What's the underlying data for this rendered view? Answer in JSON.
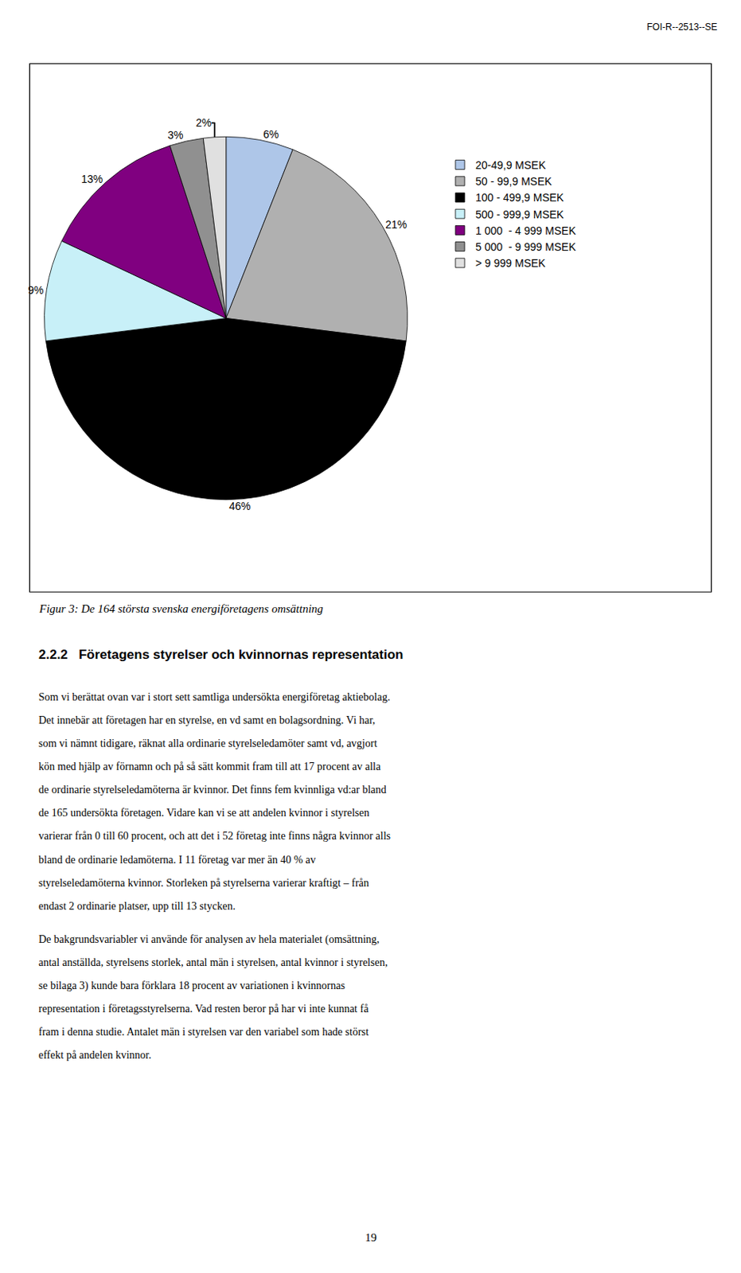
{
  "chart_data": {
    "type": "pie",
    "categories": [
      "20-49,9 MSEK",
      "50 - 99,9 MSEK",
      "100 - 499,9 MSEK",
      "500 - 999,9 MSEK",
      "1 000  - 4 999 MSEK",
      "5 000  - 9 999 MSEK",
      "> 9 999 MSEK"
    ],
    "values": [
      6,
      21,
      46,
      9,
      13,
      3,
      2
    ],
    "value_labels": [
      "6%",
      "21%",
      "46%",
      "9%",
      "13%",
      "3%",
      "2%"
    ],
    "colors": [
      "#aec6e8",
      "#b0b0b0",
      "#000000",
      "#c8f0f8",
      "#800080",
      "#909090",
      "#e0e0e0"
    ],
    "data_labels": true,
    "legend": "right"
  },
  "header_text": "FOI-R--2513--SE",
  "figure_caption": "Figur 3: De 164 största svenska energiföretagens omsättning",
  "section_title": "2.2.2   Företagens styrelser och kvinnornas representation",
  "body_text1_lines": [
    "Som vi berättat ovan var i stort sett samtliga undersökta energiföretag aktiebolag.",
    "Det innebär att företagen har en styrelse, en vd samt en bolagsordning. Vi har,",
    "som vi nämnt tidigare, räknat alla ordinarie styrelseledamöter samt vd, avgjort",
    "kön med hjälp av förnamn och på så sätt kommit fram till att 17 procent av alla",
    "de ordinarie styrelseledamöterna är kvinnor. Det finns fem kvinnliga vd:ar bland",
    "de 165 undersökta företagen. Vidare kan vi se att andelen kvinnor i styrelsen",
    "varierar från 0 till 60 procent, och att det i 52 företag inte finns några kvinnor alls",
    "bland de ordinarie ledamöterna. I 11 företag var mer än 40 % av",
    "styrelseledamöterna kvinnor. Storleken på styrelserna varierar kraftigt – från",
    "endast 2 ordinarie platser, upp till 13 stycken."
  ],
  "body_text2_lines": [
    "De bakgrundsvariabler vi använde för analysen av hela materialet (omsättning,",
    "antal anställda, styrelsens storlek, antal män i styrelsen, antal kvinnor i styrelsen,",
    "se bilaga 3) kunde bara förklara 18 procent av variationen i kvinnornas",
    "representation i företagsstyrelserna. Vad resten beror på har vi inte kunnat få",
    "fram i denna studie. Antalet män i styrelsen var den variabel som hade störst",
    "effekt på andelen kvinnor."
  ],
  "page_number": "19"
}
